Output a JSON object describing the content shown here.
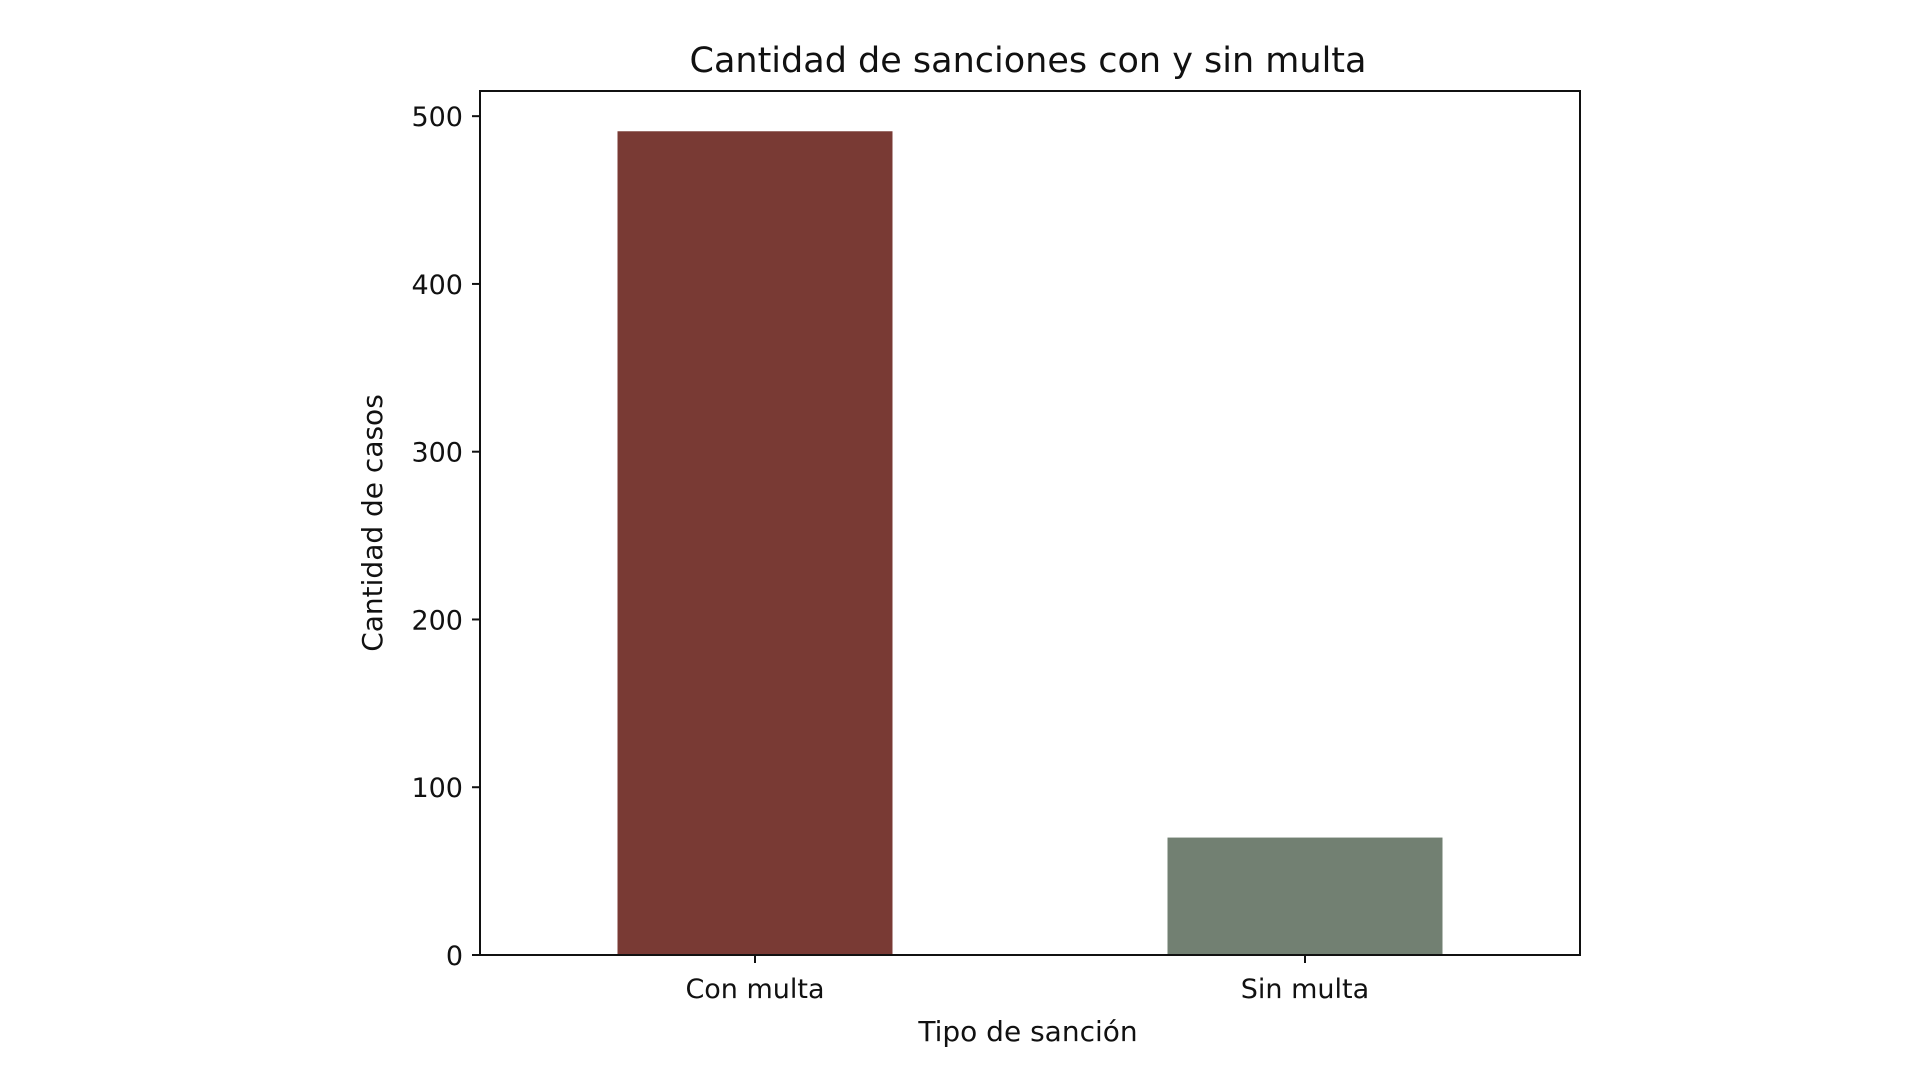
{
  "chart_data": {
    "type": "bar",
    "title": "Cantidad de sanciones con y sin multa",
    "xlabel": "Tipo de sanción",
    "ylabel": "Cantidad de casos",
    "categories": [
      "Con multa",
      "Sin multa"
    ],
    "values": [
      491,
      70
    ],
    "colors": [
      "#793a34",
      "#728072"
    ],
    "yticks": [
      0,
      100,
      200,
      300,
      400,
      500
    ],
    "ylim": [
      0,
      515
    ],
    "grid": false,
    "legend": "none"
  }
}
